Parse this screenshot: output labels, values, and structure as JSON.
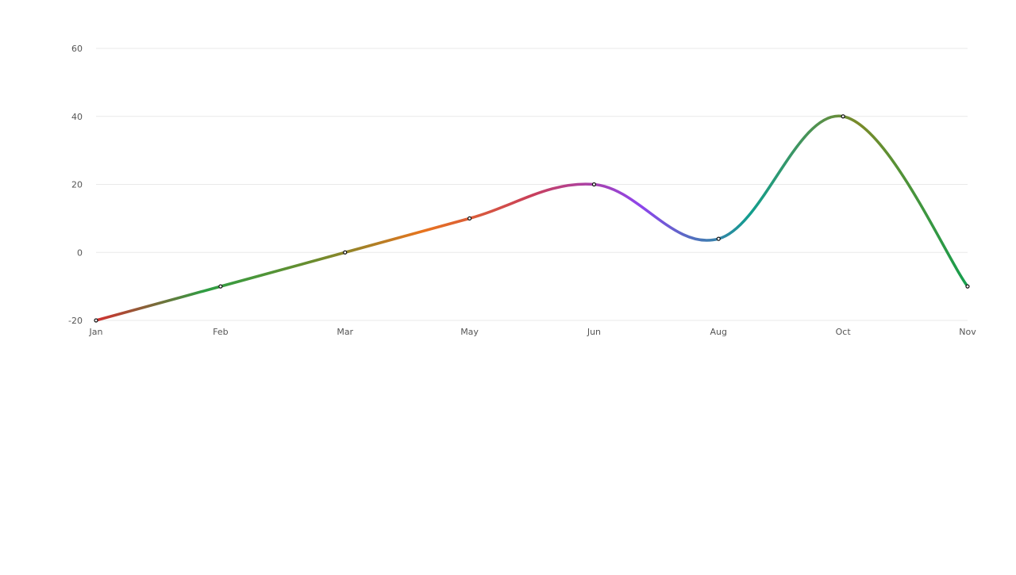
{
  "chart_data": {
    "type": "line",
    "categories": [
      "Jan",
      "Feb",
      "Mar",
      "May",
      "Jun",
      "Aug",
      "Oct",
      "Nov"
    ],
    "series": [
      {
        "values": [
          -20,
          -10,
          0,
          10,
          20,
          4,
          40,
          -10
        ]
      }
    ],
    "ylim": [
      -20,
      60
    ],
    "yticks": [
      -20,
      0,
      20,
      40,
      60
    ],
    "ytick_labels": [
      "-20",
      "0",
      "20",
      "40",
      "60"
    ],
    "grid": true,
    "smooth": true,
    "colors": {
      "gridline": "#e9e9e9",
      "tick_label": "#555555",
      "point_fill": "#ffffff",
      "point_stroke": "#111111",
      "gradient_stops": [
        "#d32f2f",
        "#2e9e43",
        "#6b8c2e",
        "#e8741e",
        "#c93f5a",
        "#8e44ec",
        "#119e8e",
        "#7a8a28",
        "#169e4e"
      ]
    }
  }
}
